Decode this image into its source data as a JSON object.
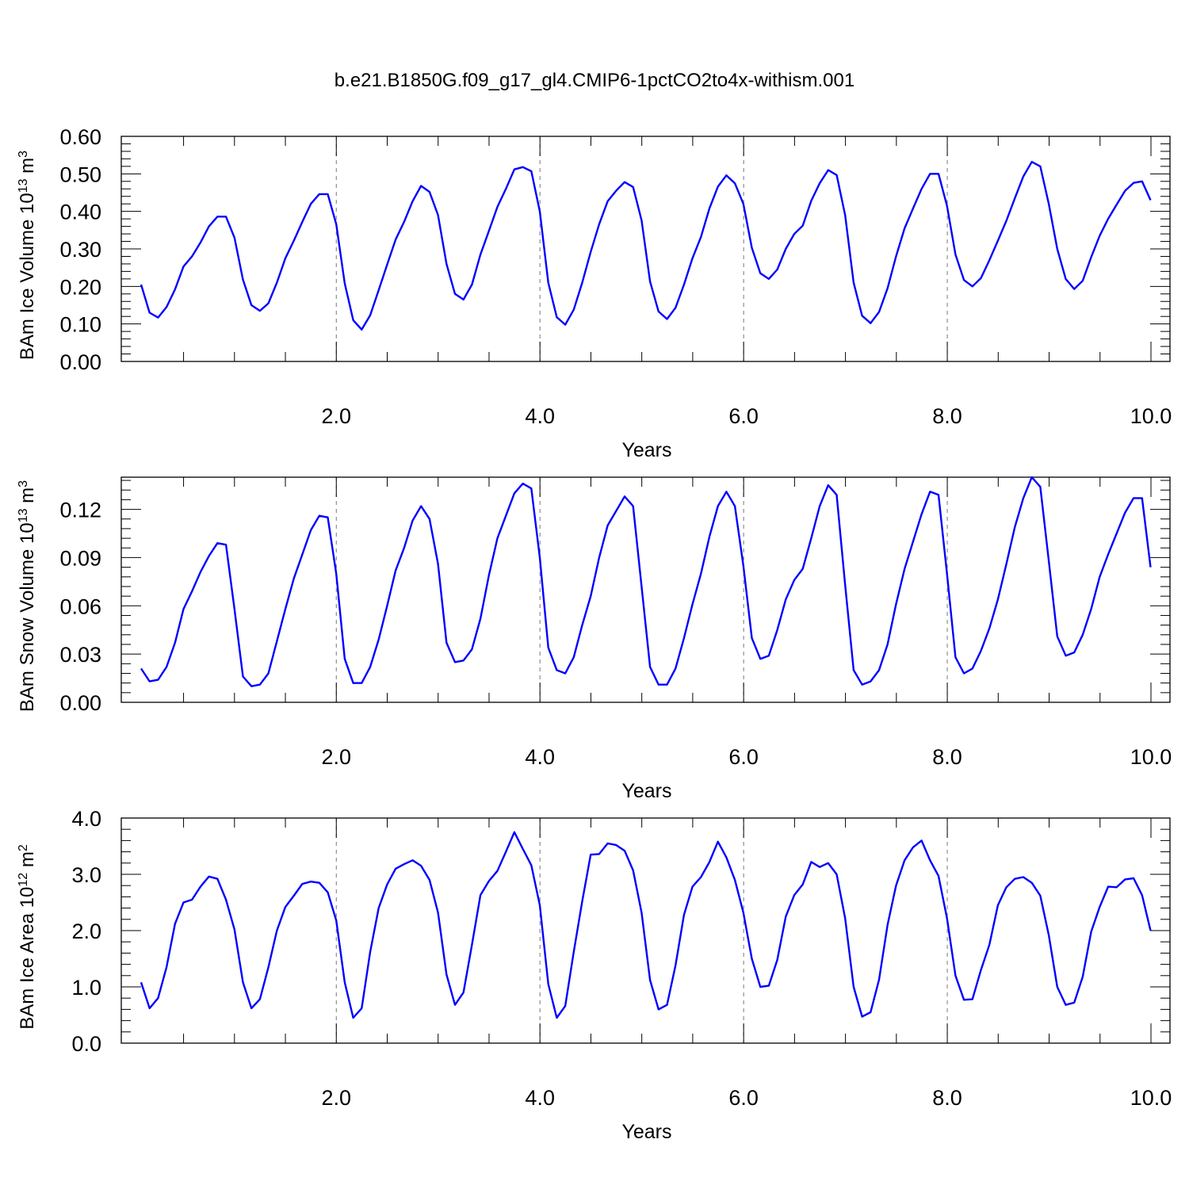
{
  "figure": {
    "title": "b.e21.B1850G.f09_g17_gl4.CMIP6-1pctCO2to4x-withism.001"
  },
  "chart_data": [
    {
      "type": "line",
      "ylabel": {
        "main": "BAm Ice Volume 10",
        "exp": "13",
        "unit": " m",
        "unit_exp": "3"
      },
      "xlabel": "Years",
      "xlim": [
        0.083,
        10.0
      ],
      "ylim": [
        0.0,
        0.6
      ],
      "grid": "vertical dashed at major x ticks",
      "line_color": "#0000ff",
      "x_ticks": [
        {
          "value": 2.0,
          "label": "2.0"
        },
        {
          "value": 4.0,
          "label": "4.0"
        },
        {
          "value": 6.0,
          "label": "6.0"
        },
        {
          "value": 8.0,
          "label": "8.0"
        },
        {
          "value": 10.0,
          "label": "10.0"
        }
      ],
      "y_ticks": [
        {
          "value": 0.0,
          "label": "0.00"
        },
        {
          "value": 0.1,
          "label": "0.10"
        },
        {
          "value": 0.2,
          "label": "0.20"
        },
        {
          "value": 0.3,
          "label": "0.30"
        },
        {
          "value": 0.4,
          "label": "0.40"
        },
        {
          "value": 0.5,
          "label": "0.50"
        },
        {
          "value": 0.6,
          "label": "0.60"
        }
      ],
      "x_start": 0.0833,
      "x_step": 0.0833,
      "series": [
        {
          "values": [
            0.205,
            0.13,
            0.117,
            0.145,
            0.192,
            0.253,
            0.28,
            0.317,
            0.36,
            0.386,
            0.386,
            0.33,
            0.218,
            0.15,
            0.135,
            0.155,
            0.21,
            0.275,
            0.322,
            0.372,
            0.42,
            0.446,
            0.446,
            0.366,
            0.208,
            0.11,
            0.085,
            0.123,
            0.19,
            0.258,
            0.325,
            0.372,
            0.427,
            0.468,
            0.452,
            0.39,
            0.26,
            0.18,
            0.165,
            0.205,
            0.285,
            0.348,
            0.412,
            0.46,
            0.512,
            0.518,
            0.507,
            0.4,
            0.21,
            0.118,
            0.098,
            0.138,
            0.21,
            0.292,
            0.366,
            0.427,
            0.455,
            0.478,
            0.465,
            0.376,
            0.213,
            0.133,
            0.113,
            0.143,
            0.205,
            0.275,
            0.332,
            0.408,
            0.466,
            0.496,
            0.475,
            0.42,
            0.303,
            0.235,
            0.22,
            0.245,
            0.3,
            0.34,
            0.362,
            0.428,
            0.475,
            0.51,
            0.497,
            0.39,
            0.21,
            0.122,
            0.102,
            0.132,
            0.195,
            0.28,
            0.355,
            0.408,
            0.46,
            0.5,
            0.5,
            0.415,
            0.285,
            0.217,
            0.2,
            0.222,
            0.27,
            0.322,
            0.375,
            0.435,
            0.493,
            0.532,
            0.52,
            0.42,
            0.3,
            0.22,
            0.193,
            0.215,
            0.278,
            0.335,
            0.38,
            0.418,
            0.455,
            0.476,
            0.48,
            0.43
          ]
        }
      ]
    },
    {
      "type": "line",
      "ylabel": {
        "main": "BAm Snow Volume 10",
        "exp": "13",
        "unit": " m",
        "unit_exp": "3"
      },
      "xlabel": "Years",
      "xlim": [
        0.083,
        10.0
      ],
      "ylim": [
        0.0,
        0.14
      ],
      "grid": "vertical dashed at major x ticks",
      "line_color": "#0000ff",
      "x_ticks": [
        {
          "value": 2.0,
          "label": "2.0"
        },
        {
          "value": 4.0,
          "label": "4.0"
        },
        {
          "value": 6.0,
          "label": "6.0"
        },
        {
          "value": 8.0,
          "label": "8.0"
        },
        {
          "value": 10.0,
          "label": "10.0"
        }
      ],
      "y_ticks": [
        {
          "value": 0.0,
          "label": "0.00"
        },
        {
          "value": 0.03,
          "label": "0.03"
        },
        {
          "value": 0.06,
          "label": "0.06"
        },
        {
          "value": 0.09,
          "label": "0.09"
        },
        {
          "value": 0.12,
          "label": "0.12"
        }
      ],
      "x_start": 0.0833,
      "x_step": 0.0833,
      "series": [
        {
          "values": [
            0.021,
            0.013,
            0.014,
            0.022,
            0.037,
            0.058,
            0.069,
            0.081,
            0.091,
            0.099,
            0.098,
            0.058,
            0.016,
            0.01,
            0.011,
            0.018,
            0.038,
            0.058,
            0.077,
            0.092,
            0.107,
            0.116,
            0.115,
            0.08,
            0.027,
            0.012,
            0.012,
            0.022,
            0.039,
            0.06,
            0.082,
            0.096,
            0.113,
            0.122,
            0.114,
            0.086,
            0.037,
            0.025,
            0.026,
            0.033,
            0.052,
            0.079,
            0.102,
            0.116,
            0.13,
            0.136,
            0.133,
            0.09,
            0.034,
            0.02,
            0.018,
            0.028,
            0.048,
            0.066,
            0.09,
            0.11,
            0.119,
            0.128,
            0.122,
            0.072,
            0.022,
            0.011,
            0.011,
            0.021,
            0.04,
            0.061,
            0.08,
            0.103,
            0.122,
            0.131,
            0.122,
            0.085,
            0.04,
            0.027,
            0.029,
            0.045,
            0.064,
            0.076,
            0.083,
            0.102,
            0.122,
            0.135,
            0.129,
            0.073,
            0.02,
            0.011,
            0.013,
            0.02,
            0.036,
            0.061,
            0.083,
            0.1,
            0.117,
            0.131,
            0.129,
            0.08,
            0.028,
            0.018,
            0.021,
            0.032,
            0.046,
            0.064,
            0.086,
            0.109,
            0.127,
            0.14,
            0.134,
            0.088,
            0.041,
            0.029,
            0.031,
            0.042,
            0.058,
            0.078,
            0.092,
            0.105,
            0.118,
            0.127,
            0.127,
            0.084
          ]
        }
      ]
    },
    {
      "type": "line",
      "ylabel": {
        "main": "BAm Ice Area 10",
        "exp": "12",
        "unit": " m",
        "unit_exp": "2"
      },
      "xlabel": "Years",
      "xlim": [
        0.083,
        10.0
      ],
      "ylim": [
        0.0,
        4.0
      ],
      "grid": "vertical dashed at major x ticks",
      "line_color": "#0000ff",
      "x_ticks": [
        {
          "value": 2.0,
          "label": "2.0"
        },
        {
          "value": 4.0,
          "label": "4.0"
        },
        {
          "value": 6.0,
          "label": "6.0"
        },
        {
          "value": 8.0,
          "label": "8.0"
        },
        {
          "value": 10.0,
          "label": "10.0"
        }
      ],
      "y_ticks": [
        {
          "value": 0.0,
          "label": "0.0"
        },
        {
          "value": 1.0,
          "label": "1.0"
        },
        {
          "value": 2.0,
          "label": "2.0"
        },
        {
          "value": 3.0,
          "label": "3.0"
        },
        {
          "value": 4.0,
          "label": "4.0"
        }
      ],
      "x_start": 0.0833,
      "x_step": 0.0833,
      "series": [
        {
          "values": [
            1.08,
            0.62,
            0.8,
            1.35,
            2.12,
            2.5,
            2.55,
            2.78,
            2.96,
            2.92,
            2.55,
            2.02,
            1.08,
            0.62,
            0.78,
            1.35,
            2.0,
            2.42,
            2.62,
            2.83,
            2.87,
            2.85,
            2.68,
            2.18,
            1.08,
            0.45,
            0.62,
            1.62,
            2.4,
            2.82,
            3.1,
            3.18,
            3.25,
            3.15,
            2.9,
            2.32,
            1.22,
            0.68,
            0.9,
            1.75,
            2.63,
            2.88,
            3.06,
            3.4,
            3.75,
            3.45,
            3.16,
            2.45,
            1.05,
            0.45,
            0.66,
            1.62,
            2.52,
            3.35,
            3.36,
            3.55,
            3.52,
            3.42,
            3.07,
            2.32,
            1.12,
            0.6,
            0.68,
            1.38,
            2.28,
            2.78,
            2.95,
            3.22,
            3.58,
            3.3,
            2.9,
            2.32,
            1.5,
            1.0,
            1.02,
            1.48,
            2.25,
            2.63,
            2.82,
            3.22,
            3.13,
            3.2,
            3.0,
            2.22,
            1.0,
            0.47,
            0.55,
            1.13,
            2.1,
            2.8,
            3.25,
            3.48,
            3.6,
            3.25,
            2.97,
            2.22,
            1.2,
            0.77,
            0.78,
            1.3,
            1.75,
            2.45,
            2.77,
            2.92,
            2.95,
            2.85,
            2.62,
            1.92,
            1.0,
            0.68,
            0.72,
            1.18,
            1.98,
            2.42,
            2.78,
            2.77,
            2.91,
            2.93,
            2.63,
            2.0
          ]
        }
      ]
    }
  ]
}
